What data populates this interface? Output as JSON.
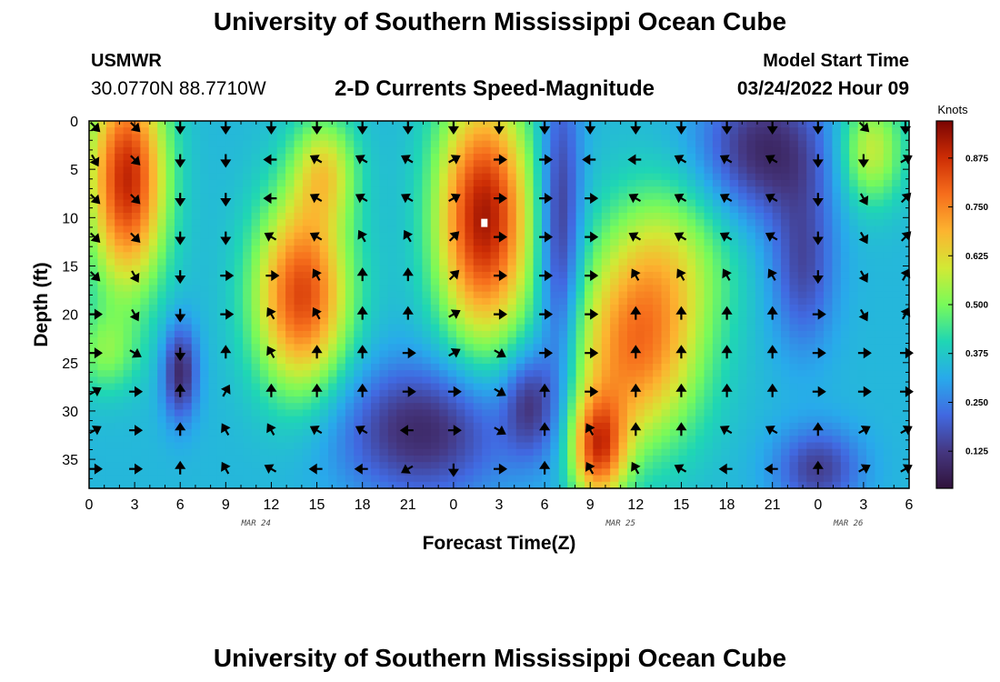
{
  "header": {
    "title": "University of Southern Mississippi Ocean Cube",
    "title_repeat": "University of Southern Mississippi Ocean Cube",
    "station": "USMWR",
    "coordinates": "30.0770N  88.7710W",
    "subtitle": "2-D Currents Speed-Magnitude",
    "model_start_label": "Model Start Time",
    "model_start_value": "03/24/2022 Hour 09"
  },
  "chart_data": {
    "type": "heatmap",
    "title": "2-D Currents Speed-Magnitude",
    "xlabel": "Forecast Time(Z)",
    "ylabel": "Depth (ft)",
    "x_tick_labels": [
      "0",
      "3",
      "6",
      "9",
      "12",
      "15",
      "18",
      "21",
      "0",
      "3",
      "6",
      "9",
      "12",
      "15",
      "18",
      "21",
      "0",
      "3",
      "6"
    ],
    "x_tick_hours": [
      0,
      3,
      6,
      9,
      12,
      15,
      18,
      21,
      24,
      27,
      30,
      33,
      36,
      39,
      42,
      45,
      48,
      51,
      54
    ],
    "date_labels": [
      {
        "text": "MAR 24",
        "hour": 11
      },
      {
        "text": "MAR 25",
        "hour": 35
      },
      {
        "text": "MAR 26",
        "hour": 50
      }
    ],
    "x_range_hours": [
      0,
      54
    ],
    "y_tick_labels": [
      "0",
      "5",
      "10",
      "15",
      "20",
      "25",
      "30",
      "35"
    ],
    "y_ticks": [
      0,
      5,
      10,
      15,
      20,
      25,
      30,
      35
    ],
    "ylim": [
      0,
      38
    ],
    "colorbar": {
      "label": "Knots",
      "min": 0.03,
      "max": 0.97,
      "tick_values": [
        0.125,
        0.25,
        0.375,
        0.5,
        0.625,
        0.75,
        0.875
      ],
      "tick_labels": [
        "0.125",
        "0.250",
        "0.375",
        "0.500",
        "0.625",
        "0.750",
        "0.875"
      ]
    },
    "speed_blobs_knots": [
      {
        "hour": 2.5,
        "depth": 6,
        "sh": 1.8,
        "sd": 8,
        "amp": 0.55
      },
      {
        "hour": 1,
        "depth": 24,
        "sh": 1.5,
        "sd": 3,
        "amp": 0.15
      },
      {
        "hour": 6,
        "depth": 26,
        "sh": 0.8,
        "sd": 3.5,
        "amp": -0.25
      },
      {
        "hour": 14,
        "depth": 18,
        "sh": 2.2,
        "sd": 7,
        "amp": 0.5
      },
      {
        "hour": 15.5,
        "depth": 5,
        "sh": 1.5,
        "sd": 4,
        "amp": 0.25
      },
      {
        "hour": 22,
        "depth": 32,
        "sh": 4,
        "sd": 5,
        "amp": -0.25
      },
      {
        "hour": 26,
        "depth": 10,
        "sh": 2.2,
        "sd": 9,
        "amp": 0.58
      },
      {
        "hour": 29,
        "depth": 29,
        "sh": 1.2,
        "sd": 4,
        "amp": -0.2
      },
      {
        "hour": 31,
        "depth": 12,
        "sh": 1,
        "sd": 12,
        "amp": -0.25
      },
      {
        "hour": 33.5,
        "depth": 34,
        "sh": 1.3,
        "sd": 4,
        "amp": 0.45
      },
      {
        "hour": 36,
        "depth": 24,
        "sh": 3,
        "sd": 7,
        "amp": 0.4
      },
      {
        "hour": 38,
        "depth": 14,
        "sh": 3,
        "sd": 6,
        "amp": 0.2
      },
      {
        "hour": 44.5,
        "depth": 3,
        "sh": 3,
        "sd": 5,
        "amp": -0.25
      },
      {
        "hour": 47,
        "depth": 15,
        "sh": 1.5,
        "sd": 6,
        "amp": -0.18
      },
      {
        "hour": 48,
        "depth": 36,
        "sh": 2,
        "sd": 3,
        "amp": -0.2
      },
      {
        "hour": 51.5,
        "depth": 3,
        "sh": 1.5,
        "sd": 4,
        "amp": 0.25
      }
    ],
    "speed_baseline_knots": 0.34,
    "marker": {
      "hour": 26,
      "depth": 10.5
    },
    "arrow_hours": [
      0,
      3,
      6,
      9,
      12,
      15,
      18,
      21,
      24,
      27,
      30,
      33,
      36,
      39,
      42,
      45,
      48,
      51,
      54
    ],
    "arrow_depths": [
      0,
      4,
      8,
      12,
      16,
      20,
      24,
      28,
      32,
      36
    ],
    "arrow_directions_deg": [
      [
        135,
        135,
        180,
        180,
        180,
        180,
        180,
        180,
        180,
        180,
        180,
        180,
        180,
        180,
        180,
        180,
        180,
        135,
        180
      ],
      [
        150,
        135,
        180,
        180,
        270,
        300,
        300,
        300,
        60,
        90,
        90,
        270,
        270,
        300,
        300,
        300,
        180,
        180,
        60
      ],
      [
        135,
        135,
        180,
        180,
        270,
        300,
        300,
        300,
        60,
        90,
        90,
        90,
        300,
        300,
        300,
        300,
        180,
        150,
        45
      ],
      [
        135,
        135,
        180,
        180,
        300,
        300,
        330,
        330,
        45,
        90,
        90,
        90,
        300,
        300,
        300,
        300,
        180,
        150,
        45
      ],
      [
        135,
        150,
        180,
        90,
        90,
        330,
        0,
        0,
        45,
        90,
        90,
        90,
        330,
        330,
        330,
        330,
        180,
        150,
        30
      ],
      [
        90,
        150,
        180,
        90,
        330,
        330,
        0,
        0,
        60,
        90,
        90,
        90,
        0,
        0,
        0,
        0,
        90,
        150,
        30
      ],
      [
        90,
        120,
        180,
        0,
        330,
        0,
        0,
        90,
        60,
        120,
        90,
        90,
        0,
        0,
        0,
        0,
        90,
        90,
        90
      ],
      [
        60,
        90,
        0,
        30,
        0,
        0,
        0,
        90,
        90,
        120,
        0,
        90,
        0,
        0,
        0,
        0,
        90,
        90,
        90
      ],
      [
        60,
        90,
        0,
        330,
        330,
        300,
        300,
        270,
        90,
        120,
        0,
        330,
        0,
        0,
        300,
        300,
        0,
        60,
        60
      ],
      [
        90,
        90,
        0,
        330,
        300,
        270,
        270,
        240,
        180,
        90,
        0,
        330,
        330,
        300,
        270,
        270,
        0,
        60,
        60
      ]
    ]
  }
}
